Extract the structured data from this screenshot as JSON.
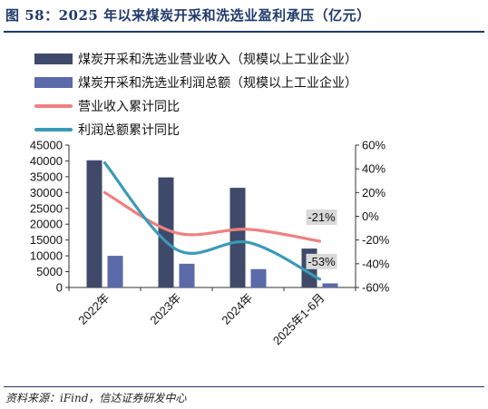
{
  "header": {
    "title": "图 58：2025 年以来煤炭开采和洗选业盈利承压（亿元）"
  },
  "footer": {
    "source": "资料来源：iFind，信达证券研发中心"
  },
  "colors": {
    "title": "#1f3a6b",
    "revenue_bar": "#3f4a6a",
    "profit_bar": "#5b6aa8",
    "revenue_growth_line": "#f08080",
    "profit_growth_line": "#3a9ab8",
    "label_box": "#d9d9d9"
  },
  "chart_data": {
    "type": "bar",
    "categories": [
      "2022年",
      "2023年",
      "2024年",
      "2025年1-6月"
    ],
    "series": [
      {
        "name": "煤炭开采和洗选业营业收入（规模以上工业企业）",
        "type": "bar",
        "axis": "left",
        "values": [
          40200,
          34800,
          31500,
          12300
        ]
      },
      {
        "name": "煤炭开采和洗选业利润总额（规模以上工业企业）",
        "type": "bar",
        "axis": "left",
        "values": [
          10000,
          7500,
          5800,
          1300
        ]
      },
      {
        "name": "营业收入累计同比",
        "type": "line",
        "axis": "right",
        "unit": "%",
        "values": [
          20,
          -14,
          -11,
          -21
        ]
      },
      {
        "name": "利润总额累计同比",
        "type": "line",
        "axis": "right",
        "unit": "%",
        "values": [
          45,
          -28,
          -22,
          -53
        ]
      }
    ],
    "data_labels": [
      {
        "series": 2,
        "index": 3,
        "text": "-21%"
      },
      {
        "series": 3,
        "index": 3,
        "text": "-53%"
      }
    ],
    "y_left": {
      "range": [
        0,
        45000
      ],
      "ticks": [
        "0",
        "5000",
        "10000",
        "15000",
        "20000",
        "25000",
        "30000",
        "35000",
        "40000",
        "45000"
      ]
    },
    "y_right": {
      "range": [
        -60,
        60
      ],
      "ticks": [
        "-60%",
        "-40%",
        "-20%",
        "0%",
        "20%",
        "40%",
        "60%"
      ]
    },
    "grid": false,
    "legend_position": "top-left"
  }
}
